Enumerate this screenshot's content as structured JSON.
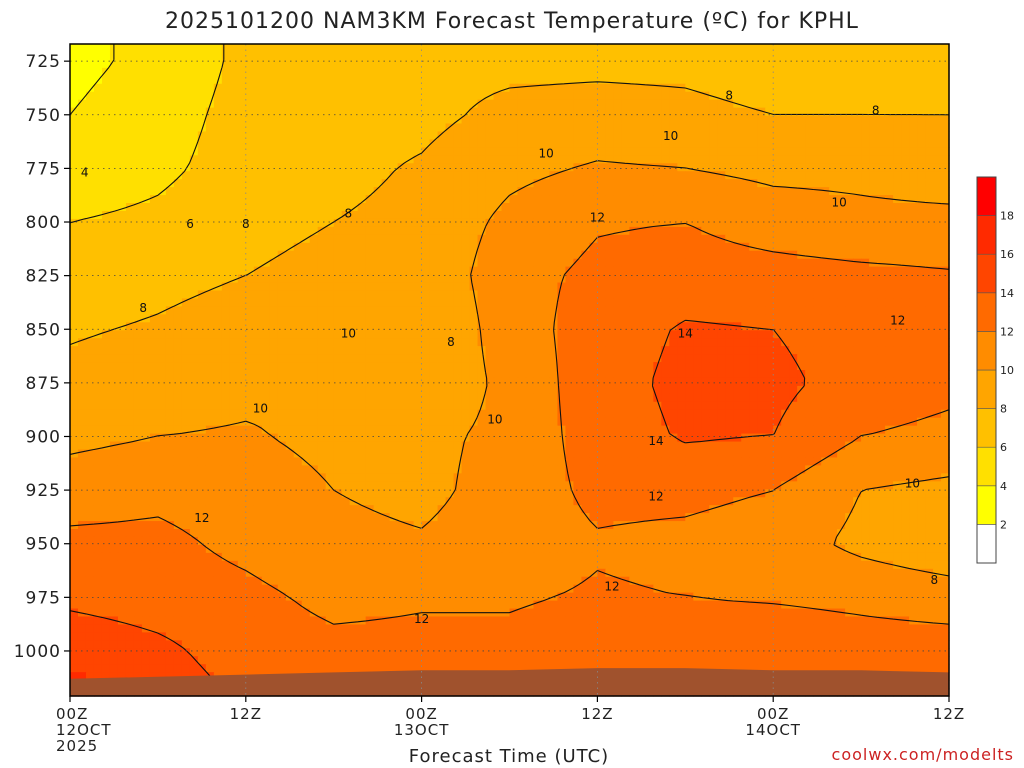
{
  "chart_data": {
    "type": "heatmap",
    "title": "2025101200 NAM3KM Forecast Temperature (ºC) for KPHL",
    "xlabel": "Forecast Time (UTC)",
    "ylabel": "",
    "credit": "coolwx.com/modelts",
    "y_axis": {
      "ticks": [
        725,
        750,
        775,
        800,
        825,
        850,
        875,
        900,
        925,
        950,
        975,
        1000
      ],
      "range": [
        717,
        1021
      ],
      "inverted": true,
      "unit": "hPa"
    },
    "x_axis": {
      "range_hours": [
        0,
        60
      ],
      "ticks": [
        {
          "hour": 0,
          "lines": [
            "00Z",
            "12OCT",
            "2025"
          ]
        },
        {
          "hour": 12,
          "lines": [
            "12Z"
          ]
        },
        {
          "hour": 24,
          "lines": [
            "00Z",
            "13OCT"
          ]
        },
        {
          "hour": 36,
          "lines": [
            "12Z"
          ]
        },
        {
          "hour": 48,
          "lines": [
            "00Z",
            "14OCT"
          ]
        },
        {
          "hour": 60,
          "lines": [
            "12Z"
          ]
        }
      ]
    },
    "grid": true,
    "colorbar": {
      "position": "right",
      "levels": [
        0,
        2,
        4,
        6,
        8,
        10,
        12,
        14,
        16,
        18,
        20
      ],
      "labels": [
        "2",
        "4",
        "6",
        "8",
        "10",
        "12",
        "14",
        "16",
        "18"
      ],
      "colors": [
        "#ffffff",
        "#ffff00",
        "#ffe000",
        "#ffc000",
        "#ffa500",
        "#ff8c00",
        "#ff6a00",
        "#ff4500",
        "#ff2a00",
        "#ff0000"
      ]
    },
    "values_hours": [
      0,
      6,
      12,
      18,
      24,
      30,
      36,
      42,
      48,
      54,
      60
    ],
    "values_pressure": [
      725,
      750,
      775,
      800,
      825,
      850,
      875,
      900,
      925,
      950,
      975,
      1000,
      1015
    ],
    "values": [
      [
        3.5,
        4.5,
        6.5,
        7.5,
        7.5,
        7.5,
        7.5,
        7.5,
        7.0,
        7.0,
        7.0
      ],
      [
        4.0,
        5.0,
        6.8,
        7.2,
        7.5,
        8.5,
        8.8,
        8.5,
        8.0,
        8.0,
        8.0
      ],
      [
        4.5,
        5.5,
        7.0,
        7.5,
        8.2,
        9.5,
        10.2,
        10.0,
        9.5,
        9.5,
        9.0
      ],
      [
        6.0,
        6.5,
        7.5,
        8.0,
        8.5,
        10.5,
        11.8,
        12.0,
        11.0,
        10.5,
        10.5
      ],
      [
        7.0,
        7.5,
        8.0,
        8.5,
        8.5,
        11.2,
        12.5,
        13.0,
        12.8,
        12.5,
        12.2
      ],
      [
        7.8,
        8.2,
        8.8,
        9.5,
        8.0,
        11.0,
        13.0,
        14.2,
        14.0,
        13.0,
        12.5
      ],
      [
        8.5,
        9.0,
        9.5,
        10.0,
        8.5,
        10.5,
        13.2,
        14.5,
        14.5,
        13.2,
        12.5
      ],
      [
        9.5,
        10.0,
        10.2,
        9.5,
        9.5,
        10.5,
        13.0,
        14.2,
        14.0,
        12.0,
        11.5
      ],
      [
        11.0,
        11.5,
        11.0,
        10.0,
        9.5,
        10.8,
        12.5,
        12.5,
        12.0,
        10.0,
        9.5
      ],
      [
        12.5,
        12.5,
        11.5,
        10.5,
        10.2,
        11.0,
        11.8,
        11.5,
        11.0,
        9.5,
        8.5
      ],
      [
        13.5,
        13.0,
        12.5,
        11.5,
        11.8,
        11.8,
        12.2,
        12.0,
        11.8,
        11.5,
        11.0
      ],
      [
        15.5,
        14.5,
        13.0,
        12.5,
        12.5,
        12.5,
        13.0,
        13.5,
        13.5,
        13.0,
        13.0
      ],
      [
        16.5,
        15.0,
        13.5,
        13.0,
        13.0,
        13.0,
        13.5,
        14.0,
        14.0,
        13.5,
        13.5
      ]
    ],
    "contour_labels": [
      {
        "hour": 1.0,
        "pressure": 777,
        "text": "4"
      },
      {
        "hour": 8.2,
        "pressure": 801,
        "text": "6"
      },
      {
        "hour": 12.0,
        "pressure": 801,
        "text": "8"
      },
      {
        "hour": 5.0,
        "pressure": 840,
        "text": "8"
      },
      {
        "hour": 19.0,
        "pressure": 796,
        "text": "8"
      },
      {
        "hour": 19.0,
        "pressure": 852,
        "text": "10"
      },
      {
        "hour": 26.0,
        "pressure": 856,
        "text": "8"
      },
      {
        "hour": 13.0,
        "pressure": 887,
        "text": "10"
      },
      {
        "hour": 29.0,
        "pressure": 892,
        "text": "10"
      },
      {
        "hour": 32.5,
        "pressure": 768,
        "text": "10"
      },
      {
        "hour": 36.0,
        "pressure": 798,
        "text": "12"
      },
      {
        "hour": 41.0,
        "pressure": 760,
        "text": "10"
      },
      {
        "hour": 45.0,
        "pressure": 741,
        "text": "8"
      },
      {
        "hour": 55.0,
        "pressure": 748,
        "text": "8"
      },
      {
        "hour": 52.5,
        "pressure": 791,
        "text": "10"
      },
      {
        "hour": 56.5,
        "pressure": 846,
        "text": "12"
      },
      {
        "hour": 42.0,
        "pressure": 852,
        "text": "14"
      },
      {
        "hour": 40.0,
        "pressure": 902,
        "text": "14"
      },
      {
        "hour": 40.0,
        "pressure": 928,
        "text": "12"
      },
      {
        "hour": 57.5,
        "pressure": 922,
        "text": "10"
      },
      {
        "hour": 59.0,
        "pressure": 967,
        "text": "8"
      },
      {
        "hour": 9.0,
        "pressure": 938,
        "text": "12"
      },
      {
        "hour": 37.0,
        "pressure": 970,
        "text": "12"
      },
      {
        "hour": 24.0,
        "pressure": 985,
        "text": "12"
      }
    ],
    "terrain": {
      "color": "#a0522d",
      "surface_pressure": [
        1013,
        1012,
        1011,
        1010,
        1009,
        1009,
        1008,
        1008,
        1009,
        1009,
        1010
      ]
    }
  }
}
